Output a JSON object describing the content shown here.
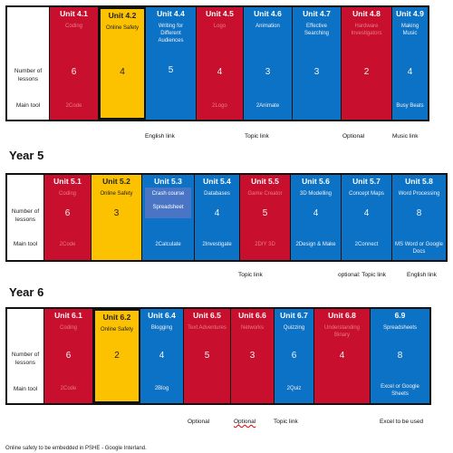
{
  "row_labels": {
    "lessons": "Number of lessons",
    "tool": "Main tool"
  },
  "year4": {
    "units": [
      {
        "title": "Unit 4.1",
        "subject": "Coding",
        "lessons": "6",
        "tool": "2Code",
        "color": "red"
      },
      {
        "title": "Unit 4.2",
        "subject": "Online Safety",
        "lessons": "4",
        "tool": "",
        "color": "yellow"
      },
      {
        "title": "Unit 4.4",
        "subject": "Writing for Different Audiences",
        "lessons": "5",
        "tool": "",
        "color": "blue"
      },
      {
        "title": "Unit 4.5",
        "subject": "Logo",
        "lessons": "4",
        "tool": "2Logo",
        "color": "red"
      },
      {
        "title": "Unit 4.6",
        "subject": "Animation",
        "lessons": "3",
        "tool": "2Animate",
        "color": "blue"
      },
      {
        "title": "Unit 4.7",
        "subject": "Effective Searching",
        "lessons": "3",
        "tool": "",
        "color": "blue"
      },
      {
        "title": "Unit 4.8",
        "subject": "Hardware Investigators",
        "lessons": "2",
        "tool": "",
        "color": "red"
      },
      {
        "title": "Unit 4.9",
        "subject": "Making Music",
        "lessons": "4",
        "tool": "Busy Beats",
        "color": "blue"
      }
    ],
    "notes": [
      "English link",
      "Topic link",
      "Optional",
      "Music link"
    ]
  },
  "year5": {
    "heading": "Year 5",
    "units": [
      {
        "title": "Unit 5.1",
        "subject": "Coding",
        "lessons": "6",
        "tool": "2Code",
        "color": "red"
      },
      {
        "title": "Unit 5.2",
        "subject": "Online Safety",
        "lessons": "3",
        "tool": "",
        "color": "yellow"
      },
      {
        "title": "Unit 5.3",
        "subject": "",
        "extra": [
          "Crash course",
          "Spreadsheet"
        ],
        "lessons": "",
        "tool": "2Calculate",
        "color": "blue"
      },
      {
        "title": "Unit 5.4",
        "subject": "Databases",
        "lessons": "4",
        "tool": "2Investigate",
        "color": "blue"
      },
      {
        "title": "Unit 5.5",
        "subject": "Game Creator",
        "lessons": "5",
        "tool": "2DIY 3D",
        "color": "red"
      },
      {
        "title": "Unit 5.6",
        "subject": "3D Modelling",
        "lessons": "4",
        "tool": "2Design & Make",
        "color": "blue"
      },
      {
        "title": "Unit 5.7",
        "subject": "Concept Maps",
        "lessons": "4",
        "tool": "2Connect",
        "color": "blue"
      },
      {
        "title": "Unit 5.8",
        "subject": "Word Processing",
        "lessons": "8",
        "tool": "MS Word or Google Docs",
        "color": "blue"
      }
    ],
    "notes": [
      "Topic link",
      "optional: Topic link",
      "English link"
    ]
  },
  "year6": {
    "heading": "Year 6",
    "units": [
      {
        "title": "Unit 6.1",
        "subject": "Coding",
        "lessons": "6",
        "tool": "2Code",
        "color": "red"
      },
      {
        "title": "Unit 6.2",
        "subject": "Online Safety",
        "lessons": "2",
        "tool": "",
        "color": "yellow"
      },
      {
        "title": "Unit 6.4",
        "subject": "Blogging",
        "lessons": "4",
        "tool": "2Blog",
        "color": "blue"
      },
      {
        "title": "Unit 6.5",
        "subject": "Text Adventures",
        "lessons": "5",
        "tool": "",
        "color": "red"
      },
      {
        "title": "Unit 6.6",
        "subject": "Networks",
        "lessons": "3",
        "tool": "",
        "color": "red"
      },
      {
        "title": "Unit 6.7",
        "subject": "Quizzing",
        "lessons": "6",
        "tool": "2Quiz",
        "color": "blue"
      },
      {
        "title": "Unit 6.8",
        "subject": "Understanding Binary",
        "lessons": "4",
        "tool": "",
        "color": "red"
      },
      {
        "title": "6.9",
        "subject": "Spreadsheets",
        "lessons": "8",
        "tool": "Excel or Google Sheets",
        "color": "blue"
      }
    ],
    "notes": [
      "Optional",
      "Optional",
      "Topic link",
      "Excel to be used"
    ]
  },
  "footer": "Online safety to be embedded in PSHE - Google Interland."
}
